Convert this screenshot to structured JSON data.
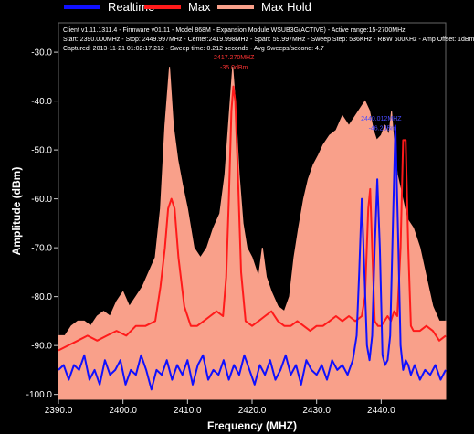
{
  "legend": [
    {
      "name": "Realtime",
      "color": "#1010ff"
    },
    {
      "name": "Max",
      "color": "#ff1a1a"
    },
    {
      "name": "Max Hold",
      "color": "#f9a08a"
    }
  ],
  "info_lines": [
    "Client v1.11.1311.4 - Firmware v01.11 - Model 868M - Expansion Module WSUB3G(ACTIVE) - Active range:15-2700MHz",
    "Start: 2390.000MHz - Stop: 2449.997MHz - Center:2419.998MHz - Span: 59.997MHz - Sweep Step: 536KHz - RBW 600KHz - Amp Offset: 1dBm",
    "Captured: 2013-11-21 01:02:17.212 - Sweep time: 0.212 seconds - Avg Sweeps/second: 4.7"
  ],
  "chart_data": {
    "type": "line",
    "xlabel": "Frequency (MHZ)",
    "ylabel": "Amplitude (dBm)",
    "xlim": [
      2390,
      2449.997
    ],
    "ylim": [
      -101,
      -24
    ],
    "x_ticks": [
      2390,
      2400,
      2410,
      2420,
      2430,
      2440
    ],
    "x_tick_labels": [
      "2390.0",
      "2400.0",
      "2410.0",
      "2420.0",
      "2430.0",
      "2440.0"
    ],
    "y_ticks": [
      -30,
      -40,
      -50,
      -60,
      -70,
      -80,
      -90,
      -100
    ],
    "y_tick_labels": [
      "-30.0",
      "-40.0",
      "-50.0",
      "-60.0",
      "-70.0",
      "-80.0",
      "-90.0",
      "-100.0"
    ],
    "grid": false,
    "legend_position": "top",
    "series": [
      {
        "name": "Max Hold",
        "color": "#f9a08a",
        "x": [
          2390,
          2391,
          2392,
          2393,
          2394,
          2395,
          2396,
          2397,
          2398,
          2399,
          2400,
          2401,
          2402,
          2403,
          2404,
          2405,
          2405.8,
          2406.5,
          2407.2,
          2407.8,
          2408.5,
          2409.2,
          2410,
          2411,
          2412,
          2413,
          2414,
          2415,
          2415.8,
          2416.5,
          2417,
          2417.4,
          2418,
          2418.6,
          2419.2,
          2420,
          2421,
          2421.6,
          2422.2,
          2423,
          2424,
          2425,
          2425.8,
          2426.5,
          2427.2,
          2428,
          2428.7,
          2429.5,
          2430.3,
          2431,
          2432,
          2433,
          2434,
          2435,
          2436,
          2437,
          2437.5,
          2438.2,
          2438.8,
          2439.3,
          2440,
          2440.6,
          2441.2,
          2441.6,
          2442,
          2442.5,
          2443,
          2443.5,
          2444,
          2445,
          2446,
          2447,
          2448,
          2449,
          2449.997
        ],
        "y": [
          -88,
          -88,
          -86,
          -85,
          -85,
          -86,
          -84,
          -83,
          -84,
          -81,
          -79,
          -82,
          -80,
          -78,
          -75,
          -72,
          -62,
          -45,
          -33,
          -45,
          -52,
          -57,
          -62,
          -70,
          -72,
          -70,
          -66,
          -63,
          -55,
          -42,
          -33,
          -40,
          -55,
          -65,
          -70,
          -72,
          -76,
          -70,
          -76,
          -79,
          -82,
          -83,
          -80,
          -72,
          -66,
          -60,
          -56,
          -53,
          -51,
          -49,
          -47,
          -46,
          -43,
          -45,
          -43,
          -41,
          -40,
          -42,
          -46,
          -48,
          -47,
          -45,
          -47,
          -42,
          -49,
          -55,
          -58,
          -61,
          -64,
          -66,
          -70,
          -76,
          -82,
          -85,
          -85
        ]
      },
      {
        "name": "Max",
        "color": "#ff1a1a",
        "x": [
          2390,
          2391.5,
          2393,
          2394.5,
          2396,
          2397.5,
          2399,
          2400.5,
          2402,
          2403.5,
          2405,
          2405.8,
          2406.5,
          2407,
          2407.5,
          2408,
          2408.6,
          2409.5,
          2410.5,
          2411.5,
          2412.5,
          2413.5,
          2414.5,
          2415.5,
          2416,
          2416.4,
          2416.8,
          2417.1,
          2417.4,
          2417.8,
          2418.3,
          2419,
          2420,
          2421,
          2422,
          2423,
          2424,
          2425,
          2426,
          2427,
          2428,
          2429,
          2430,
          2431,
          2432,
          2433,
          2434,
          2435,
          2436,
          2437,
          2437.5,
          2438,
          2438.3,
          2438.6,
          2439,
          2439.5,
          2440,
          2440.5,
          2441,
          2441.5,
          2442,
          2442.5,
          2443,
          2443.4,
          2443.8,
          2444.2,
          2444.6,
          2445,
          2446,
          2447,
          2448,
          2449,
          2449.997
        ],
        "y": [
          -91,
          -90,
          -89,
          -88,
          -89,
          -88,
          -87,
          -88,
          -86,
          -86,
          -85,
          -78,
          -70,
          -62,
          -60,
          -62,
          -72,
          -82,
          -86,
          -86,
          -85,
          -84,
          -83,
          -84,
          -76,
          -60,
          -42,
          -37,
          -40,
          -55,
          -75,
          -85,
          -86,
          -85,
          -84,
          -83,
          -85,
          -86,
          -86,
          -85,
          -86,
          -87,
          -86,
          -86,
          -85,
          -84,
          -85,
          -84,
          -85,
          -84,
          -80,
          -62,
          -58,
          -70,
          -85,
          -86,
          -86,
          -85,
          -84,
          -85,
          -83,
          -84,
          -70,
          -48,
          -48,
          -70,
          -86,
          -87,
          -87,
          -86,
          -87,
          -89,
          -88
        ]
      },
      {
        "name": "Realtime",
        "color": "#1010ff",
        "x": [
          2390,
          2390.8,
          2391.6,
          2392.4,
          2393.2,
          2394,
          2394.8,
          2395.6,
          2396.4,
          2397.2,
          2398,
          2398.8,
          2399.6,
          2400.4,
          2401.2,
          2402,
          2402.8,
          2403.6,
          2404.4,
          2405.2,
          2406,
          2406.8,
          2407.6,
          2408.4,
          2409.2,
          2410,
          2410.8,
          2411.6,
          2412.4,
          2413.2,
          2414,
          2414.8,
          2415.6,
          2416.4,
          2417.2,
          2418,
          2418.8,
          2419.6,
          2420.4,
          2421.2,
          2422,
          2422.8,
          2423.6,
          2424.4,
          2425.2,
          2426,
          2426.8,
          2427.6,
          2428.4,
          2429.2,
          2430,
          2430.8,
          2431.6,
          2432.4,
          2433.2,
          2434,
          2434.8,
          2435.6,
          2436.2,
          2436.6,
          2437,
          2437.4,
          2437.8,
          2438.2,
          2438.6,
          2439,
          2439.4,
          2439.8,
          2440.2,
          2440.6,
          2441,
          2441.4,
          2441.8,
          2442.2,
          2442.6,
          2443,
          2443.4,
          2443.8,
          2444.2,
          2444.6,
          2445.2,
          2446,
          2446.8,
          2447.6,
          2448.4,
          2449.2,
          2449.997
        ],
        "y": [
          -95,
          -94,
          -97,
          -94,
          -95,
          -92,
          -97,
          -95,
          -98,
          -93,
          -96,
          -95,
          -93,
          -98,
          -95,
          -96,
          -92,
          -95,
          -99,
          -95,
          -96,
          -93,
          -97,
          -94,
          -96,
          -93,
          -98,
          -94,
          -92,
          -97,
          -95,
          -96,
          -93,
          -97,
          -94,
          -96,
          -92,
          -95,
          -98,
          -94,
          -96,
          -93,
          -97,
          -95,
          -92,
          -96,
          -94,
          -98,
          -93,
          -95,
          -96,
          -94,
          -97,
          -93,
          -95,
          -94,
          -96,
          -93,
          -88,
          -75,
          -60,
          -75,
          -90,
          -93,
          -88,
          -70,
          -56,
          -70,
          -92,
          -94,
          -93,
          -88,
          -66,
          -45,
          -66,
          -90,
          -95,
          -93,
          -94,
          -96,
          -94,
          -97,
          -95,
          -96,
          -94,
          -97,
          -95
        ]
      }
    ],
    "annotations": [
      {
        "text": "2417.270MHZ",
        "x": 2417.2,
        "y": -31.5,
        "color": "#ff3333"
      },
      {
        "text": "-35.0dBm",
        "x": 2417.2,
        "y": -33.5,
        "color": "#ff3333"
      },
      {
        "text": "2440.012MHZ",
        "x": 2440.0,
        "y": -44.0,
        "color": "#4a4aff"
      },
      {
        "text": "-46.2dBm",
        "x": 2440.2,
        "y": -46.0,
        "color": "#4a4aff"
      }
    ]
  }
}
